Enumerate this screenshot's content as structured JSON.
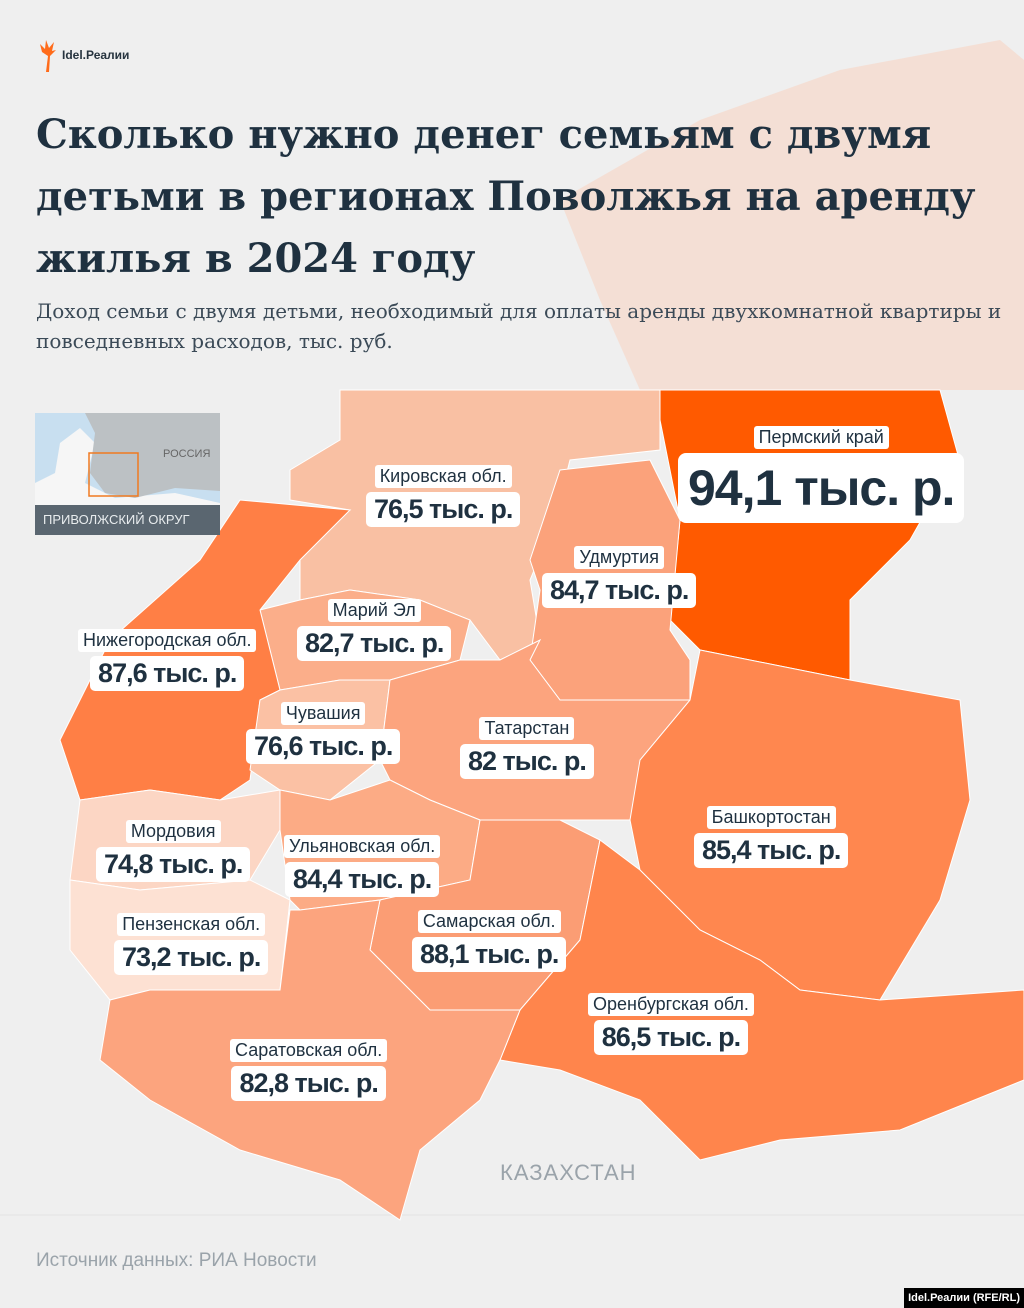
{
  "brand": {
    "logo_text": "Idel.Реалии",
    "credit": "Idel.Реалии (RFE/RL)",
    "accent": "#ff5a00"
  },
  "title": "Сколько нужно денег семьям с двумя детьми в регионах Поволжья на аренду жилья в 2024 году",
  "subtitle": "Доход семьи с двумя детьми, необходимый для оплаты аренды двухкомнатной квартиры и повседневных расходов, тыс. руб.",
  "inset": {
    "country_label": "РОССИЯ",
    "caption": "ПРИВОЛЖСКИЙ ОКРУГ"
  },
  "neighbor_label": "КАЗАХСТАН",
  "source": "Источник данных: РИА Новости",
  "regions": [
    {
      "name": "Пермский край",
      "value": "94,1 тыс. р.",
      "color": "#ff5a00"
    },
    {
      "name": "Кировская обл.",
      "value": "76,5 тыс. р.",
      "color": "#f9c0a3"
    },
    {
      "name": "Удмуртия",
      "value": "84,7 тыс. р.",
      "color": "#fba27b"
    },
    {
      "name": "Марий Эл",
      "value": "82,7 тыс. р.",
      "color": "#fbae8a"
    },
    {
      "name": "Нижегородская обл.",
      "value": "87,6 тыс. р.",
      "color": "#ff7f45"
    },
    {
      "name": "Чувашия",
      "value": "76,6 тыс. р.",
      "color": "#fbc1a4"
    },
    {
      "name": "Татарстан",
      "value": "82 тыс. р.",
      "color": "#fca47e"
    },
    {
      "name": "Башкортостан",
      "value": "85,4 тыс. р.",
      "color": "#ff874f"
    },
    {
      "name": "Мордовия",
      "value": "74,8 тыс. р.",
      "color": "#fcd6c4"
    },
    {
      "name": "Ульяновская обл.",
      "value": "84,4 тыс. р.",
      "color": "#fcab85"
    },
    {
      "name": "Пензенская обл.",
      "value": "73,2 тыс. р.",
      "color": "#fde1d3"
    },
    {
      "name": "Самарская обл.",
      "value": "88,1 тыс. р.",
      "color": "#fb9d74"
    },
    {
      "name": "Оренбургская обл.",
      "value": "86,5 тыс. р.",
      "color": "#ff854c"
    },
    {
      "name": "Саратовская обл.",
      "value": "82,8 тыс. р.",
      "color": "#fca47e"
    }
  ]
}
